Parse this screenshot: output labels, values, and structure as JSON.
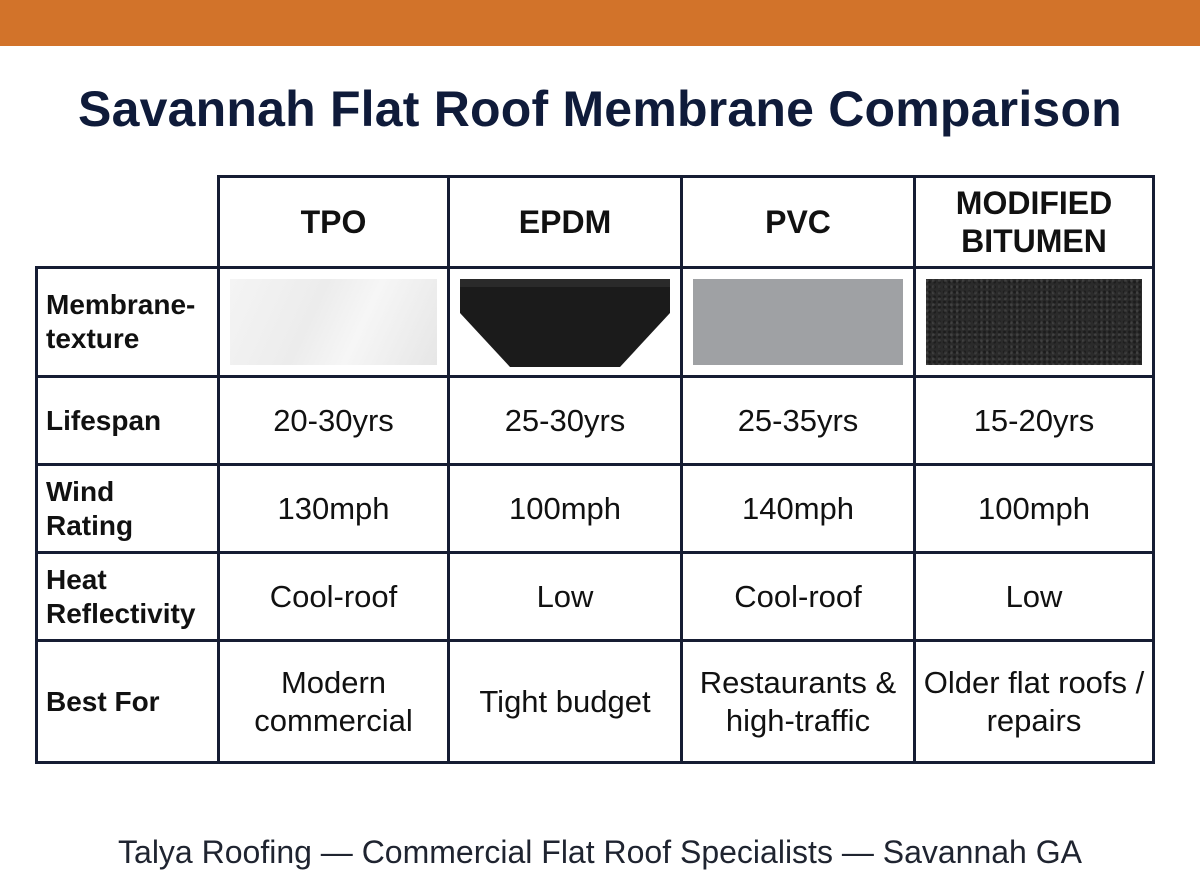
{
  "title": "Savannah Flat Roof Membrane Comparison",
  "columns": [
    "TPO",
    "EPDM",
    "PVC",
    "MODIFIED BITUMEN"
  ],
  "rows": [
    {
      "label": "Membrane-texture",
      "values": []
    },
    {
      "label": "Lifespan",
      "values": [
        "20-30yrs",
        "25-30yrs",
        "25-35yrs",
        "15-20yrs"
      ]
    },
    {
      "label": "Wind Rating",
      "values": [
        "130mph",
        "100mph",
        "140mph",
        "100mph"
      ]
    },
    {
      "label": "Heat Reflectivity",
      "values": [
        "Cool-roof",
        "Low",
        "Cool-roof",
        "Low"
      ]
    },
    {
      "label": "Best For",
      "values": [
        "Modern commercial",
        "Tight budget",
        "Restaurants & high-traffic",
        "Older flat roofs / repairs"
      ]
    }
  ],
  "footer": "Talya Roofing — Commercial Flat Roof Specialists — Savannah GA",
  "colors": {
    "top_band": "#d2732a",
    "title": "#0f1b3a",
    "grid_line": "#161d33"
  }
}
